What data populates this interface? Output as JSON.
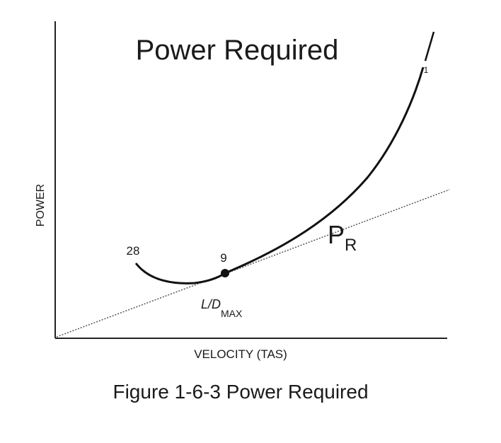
{
  "title": "Power Required",
  "axes": {
    "x_label": "VELOCITY (TAS)",
    "y_label": "POWER"
  },
  "curve": {
    "label": {
      "main": "P",
      "sub": "R"
    }
  },
  "points": [
    "28",
    "9",
    "1"
  ],
  "tangent_point": {
    "main": "L/D",
    "sub": "MAX"
  },
  "caption": "Figure 1-6-3 Power Required"
}
